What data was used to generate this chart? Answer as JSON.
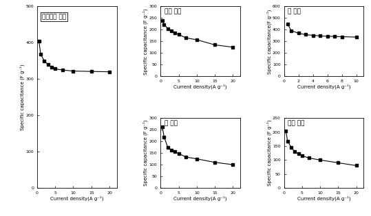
{
  "panel_left": {
    "label": "이종원소 없음",
    "x": [
      0.5,
      1,
      2,
      3,
      4,
      5,
      7,
      10,
      15,
      20
    ],
    "y": [
      405,
      368,
      350,
      340,
      332,
      328,
      325,
      322,
      321,
      320
    ],
    "xlim": [
      0,
      22
    ],
    "ylim": [
      0,
      500
    ],
    "xticks": [
      0,
      5,
      10,
      15,
      20
    ],
    "yticks": [
      0,
      100,
      200,
      300,
      400,
      500
    ]
  },
  "panel_N": {
    "label": "질소 도입",
    "x": [
      0.5,
      1,
      2,
      3,
      4,
      5,
      7,
      10,
      15,
      20
    ],
    "y": [
      240,
      222,
      205,
      195,
      185,
      180,
      165,
      157,
      135,
      125
    ],
    "xlim": [
      0,
      22
    ],
    "ylim": [
      0,
      300
    ],
    "xticks": [
      0,
      5,
      10,
      15,
      20
    ],
    "yticks": [
      0,
      50,
      100,
      150,
      200,
      250,
      300
    ]
  },
  "panel_P": {
    "label": "인 도입",
    "x": [
      0.5,
      1,
      2,
      3,
      4,
      5,
      6,
      7,
      8,
      10
    ],
    "y": [
      450,
      393,
      370,
      358,
      352,
      347,
      344,
      342,
      340,
      337
    ],
    "xlim": [
      0,
      11
    ],
    "ylim": [
      0,
      600
    ],
    "xticks": [
      0,
      2,
      4,
      6,
      8,
      10
    ],
    "yticks": [
      0,
      100,
      200,
      300,
      400,
      500,
      600
    ]
  },
  "panel_S": {
    "label": "황 도입",
    "x": [
      0.5,
      1,
      2,
      3,
      4,
      5,
      7,
      10,
      15,
      20
    ],
    "y": [
      262,
      218,
      175,
      163,
      155,
      148,
      133,
      125,
      110,
      100
    ],
    "xlim": [
      0,
      22
    ],
    "ylim": [
      0,
      300
    ],
    "xticks": [
      0,
      5,
      10,
      15,
      20
    ],
    "yticks": [
      0,
      50,
      100,
      150,
      200,
      250,
      300
    ]
  },
  "panel_B": {
    "label": "붕소 도입",
    "x": [
      0.5,
      1,
      2,
      3,
      4,
      5,
      7,
      10,
      15,
      20
    ],
    "y": [
      205,
      168,
      145,
      130,
      122,
      115,
      107,
      100,
      90,
      80
    ],
    "xlim": [
      0,
      22
    ],
    "ylim": [
      0,
      250
    ],
    "xticks": [
      0,
      5,
      10,
      15,
      20
    ],
    "yticks": [
      0,
      50,
      100,
      150,
      200,
      250
    ]
  },
  "ylabel": "Specific capacitance (F g⁻¹)",
  "ylabel_P": "Specific capacitance(F g⁻¹)",
  "xlabel": "Current density(A g⁻¹)",
  "line_color": "black",
  "marker": "s",
  "markersize": 3.0,
  "linewidth": 0.8,
  "fontsize_label": 5.0,
  "fontsize_tick": 4.5,
  "fontsize_annot": 6.5
}
